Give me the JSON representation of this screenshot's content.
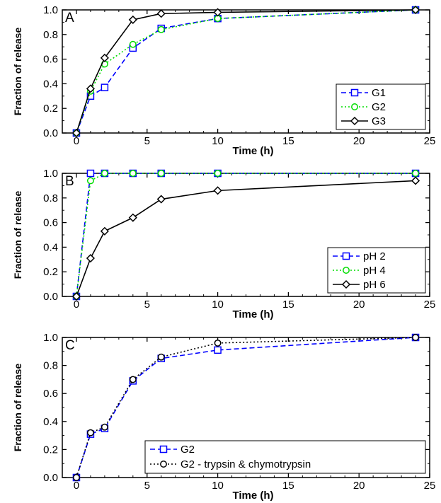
{
  "chart_data": [
    {
      "type": "line",
      "panel_label": "A",
      "xlabel": "Time (h)",
      "ylabel": "Fraction of release",
      "xlim": [
        -1,
        25
      ],
      "ylim": [
        0,
        1
      ],
      "xticks": [
        0,
        5,
        10,
        15,
        20,
        25
      ],
      "yticks": [
        "0.0",
        "0.2",
        "0.4",
        "0.6",
        "0.8",
        "1.0"
      ],
      "legend_position": "bottom-right",
      "series": [
        {
          "name": "G1",
          "color": "#0000ff",
          "dash": "dash",
          "marker": "square",
          "x": [
            0,
            1,
            2,
            4,
            6,
            10,
            24
          ],
          "y": [
            0.0,
            0.3,
            0.37,
            0.69,
            0.85,
            0.93,
            1.0
          ]
        },
        {
          "name": "G2",
          "color": "#00dd00",
          "dash": "dot",
          "marker": "circle",
          "x": [
            0,
            1,
            2,
            4,
            6,
            10,
            24
          ],
          "y": [
            0.0,
            0.34,
            0.56,
            0.72,
            0.84,
            0.93,
            1.0
          ]
        },
        {
          "name": "G3",
          "color": "#000000",
          "dash": "solid",
          "marker": "diamond",
          "x": [
            0,
            1,
            2,
            4,
            6,
            10,
            24
          ],
          "y": [
            0.0,
            0.36,
            0.61,
            0.92,
            0.97,
            0.98,
            1.0
          ]
        }
      ]
    },
    {
      "type": "line",
      "panel_label": "B",
      "xlabel": "Time (h)",
      "ylabel": "Fraction of release",
      "xlim": [
        -1,
        25
      ],
      "ylim": [
        0,
        1
      ],
      "xticks": [
        0,
        5,
        10,
        15,
        20,
        25
      ],
      "yticks": [
        "0.0",
        "0.2",
        "0.4",
        "0.6",
        "0.8",
        "1.0"
      ],
      "legend_position": "bottom-right",
      "series": [
        {
          "name": "pH 2",
          "color": "#0000ff",
          "dash": "dash",
          "marker": "square",
          "x": [
            0,
            1,
            2,
            4,
            6,
            10,
            24
          ],
          "y": [
            0.0,
            1.0,
            1.0,
            1.0,
            1.0,
            1.0,
            1.0
          ]
        },
        {
          "name": "pH 4",
          "color": "#00dd00",
          "dash": "dot",
          "marker": "circle",
          "x": [
            0,
            1,
            2,
            4,
            6,
            10,
            24
          ],
          "y": [
            0.0,
            0.94,
            1.0,
            1.0,
            1.0,
            1.0,
            1.0
          ]
        },
        {
          "name": "pH 6",
          "color": "#000000",
          "dash": "solid",
          "marker": "diamond",
          "x": [
            0,
            1,
            2,
            4,
            6,
            10,
            24
          ],
          "y": [
            0.0,
            0.31,
            0.53,
            0.64,
            0.79,
            0.86,
            0.94
          ]
        }
      ]
    },
    {
      "type": "line",
      "panel_label": "C",
      "xlabel": "Time (h)",
      "ylabel": "Fraction of release",
      "xlim": [
        -1,
        25
      ],
      "ylim": [
        0,
        1
      ],
      "xticks": [
        0,
        5,
        10,
        15,
        20,
        25
      ],
      "yticks": [
        "0.0",
        "0.2",
        "0.4",
        "0.6",
        "0.8",
        "1.0"
      ],
      "legend_position": "bottom-right",
      "series": [
        {
          "name": "G2",
          "color": "#0000ff",
          "dash": "dash",
          "marker": "square",
          "x": [
            0,
            1,
            2,
            4,
            6,
            10,
            24
          ],
          "y": [
            0.0,
            0.31,
            0.35,
            0.69,
            0.85,
            0.91,
            1.0
          ]
        },
        {
          "name": "G2 - trypsin & chymotrypsin",
          "color": "#000000",
          "dash": "dot",
          "marker": "circle",
          "x": [
            0,
            1,
            2,
            4,
            6,
            10,
            24
          ],
          "y": [
            0.0,
            0.32,
            0.36,
            0.7,
            0.86,
            0.96,
            1.0
          ]
        }
      ]
    }
  ]
}
